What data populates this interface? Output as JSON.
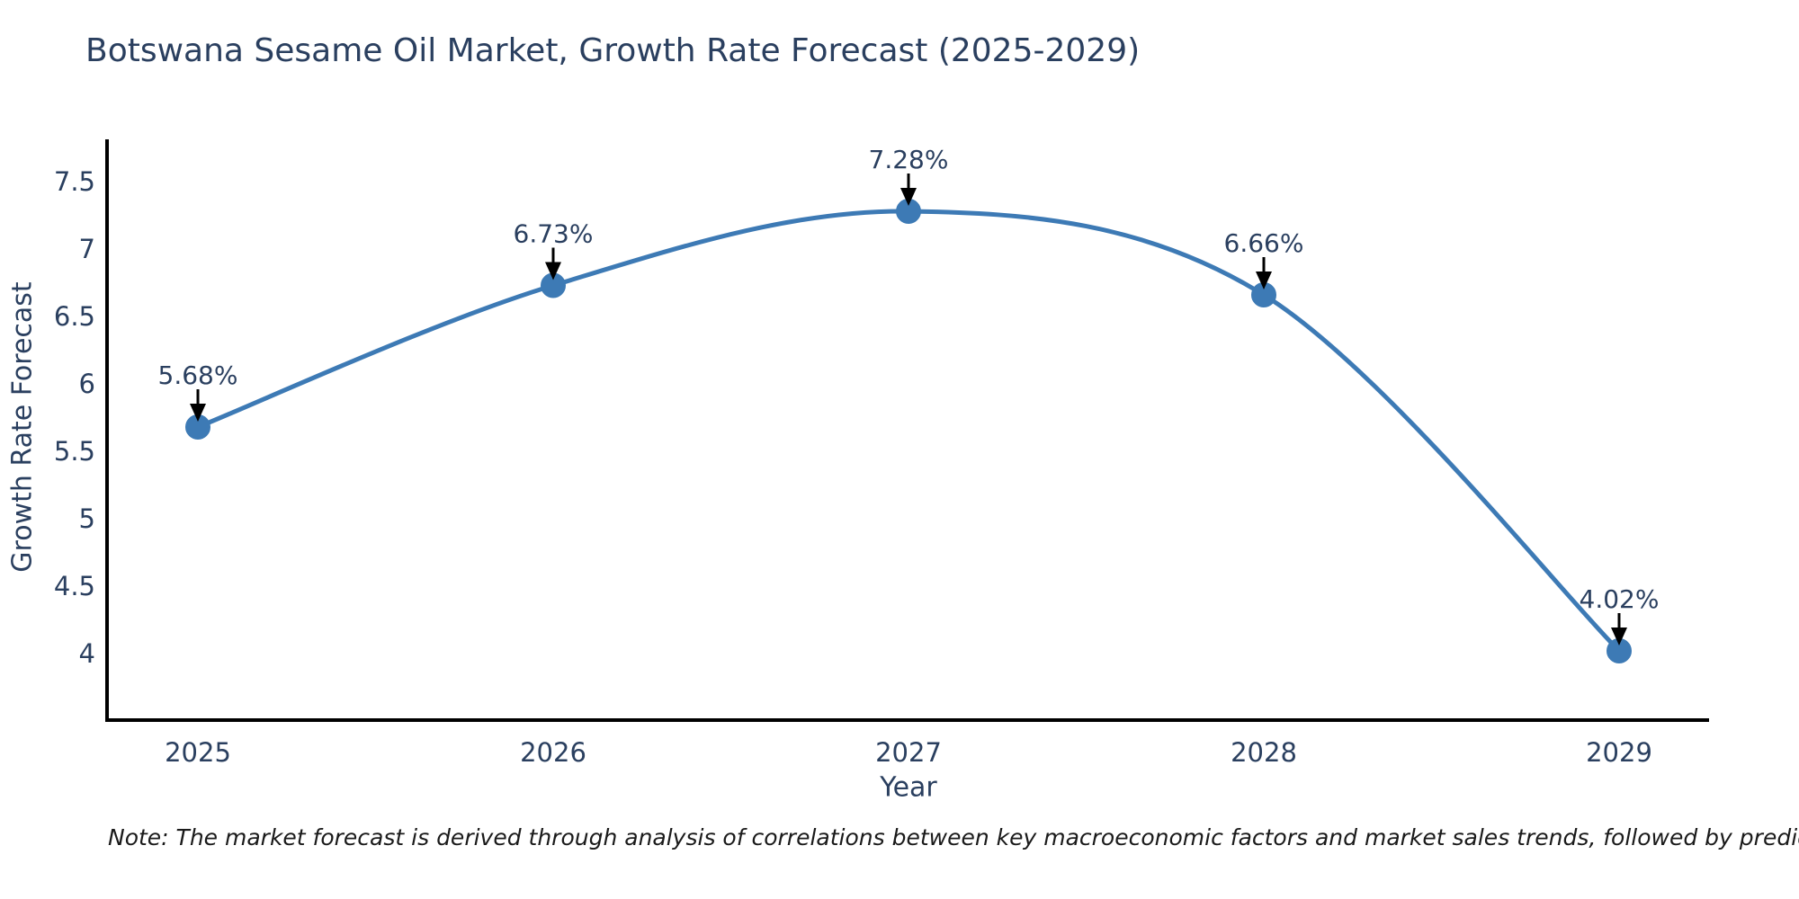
{
  "title": "Botswana Sesame Oil Market, Growth Rate Forecast (2025-2029)",
  "note": "Note: The market forecast is derived through analysis of correlations between key macroeconomic factors and market sales trends, followed by predictive modeling to project future sales",
  "chart_data": {
    "type": "line",
    "title": "Botswana Sesame Oil Market, Growth Rate Forecast (2025-2029)",
    "xlabel": "Year",
    "ylabel": "Growth Rate Forecast",
    "x": [
      2025,
      2026,
      2027,
      2028,
      2029
    ],
    "y": [
      5.68,
      6.73,
      7.28,
      6.66,
      4.02
    ],
    "point_labels": [
      "5.68%",
      "6.73%",
      "7.28%",
      "6.66%",
      "4.02%"
    ],
    "xtick_labels": [
      "2025",
      "2026",
      "2027",
      "2028",
      "2029"
    ],
    "yticks": [
      4,
      4.5,
      5,
      5.5,
      6,
      6.5,
      7,
      7.5
    ],
    "ytick_labels": [
      "4",
      "4.5",
      "5",
      "5.5",
      "6",
      "6.5",
      "7",
      "7.5"
    ],
    "ylim": [
      3.5,
      7.8
    ],
    "grid": "off",
    "legend": "none",
    "line_color": "#3d7ab5",
    "marker_color": "#3d7ab5",
    "axis_color": "#000000",
    "arrow_color": "#000000",
    "text_color": "#2a3f5f"
  }
}
